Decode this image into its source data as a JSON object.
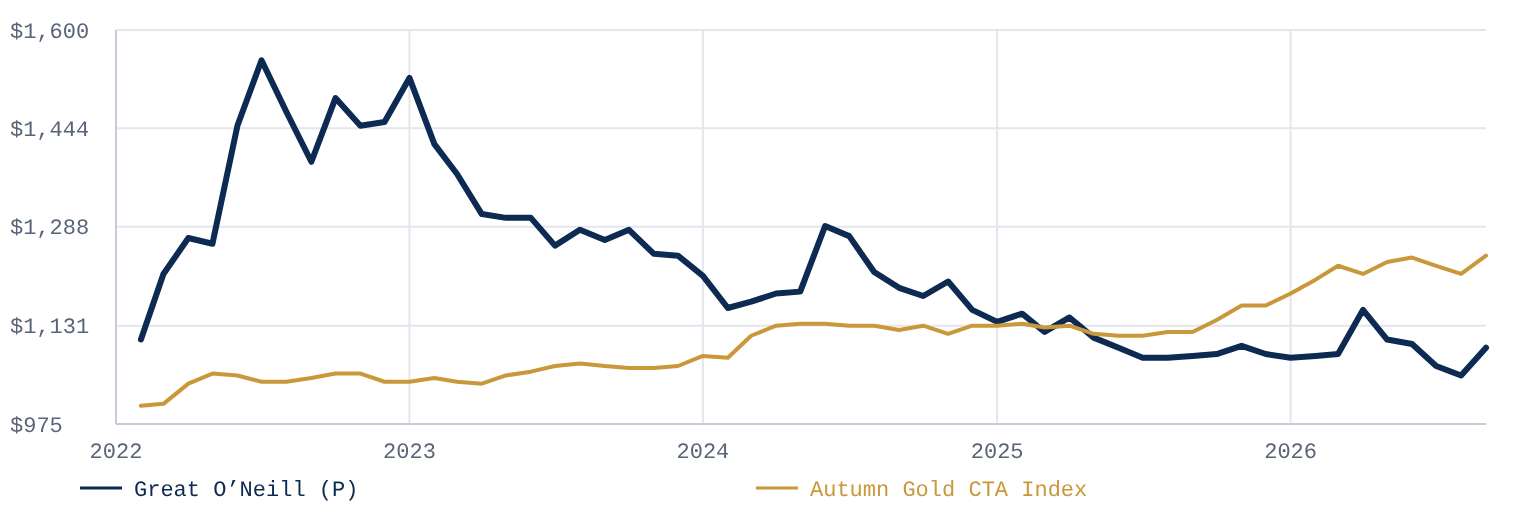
{
  "chart_data": {
    "type": "line",
    "x": [
      "2022-02",
      "2022-03",
      "2022-04",
      "2022-05",
      "2022-06",
      "2022-07",
      "2022-08",
      "2022-09",
      "2022-10",
      "2022-11",
      "2022-12",
      "2023-01",
      "2023-02",
      "2023-03",
      "2023-04",
      "2023-05",
      "2023-06",
      "2023-07",
      "2023-08",
      "2023-09",
      "2023-10",
      "2023-11",
      "2023-12",
      "2024-01",
      "2024-02",
      "2024-03",
      "2024-04",
      "2024-05",
      "2024-06",
      "2024-07",
      "2024-08",
      "2024-09",
      "2024-10",
      "2024-11",
      "2024-12",
      "2025-01",
      "2025-02",
      "2025-03",
      "2025-04",
      "2025-05",
      "2025-06",
      "2025-07",
      "2025-08",
      "2025-09",
      "2025-10",
      "2025-11",
      "2025-12",
      "2026-01",
      "2026-02",
      "2026-03",
      "2026-04",
      "2026-05",
      "2026-06",
      "2026-07",
      "2026-08",
      "2026-09"
    ],
    "series": [
      {
        "name": "Great O’Neill (P)",
        "color": "#0d2a52",
        "values": [
          1109,
          1213,
          1270,
          1261,
          1448,
          1552,
          1470,
          1391,
          1492,
          1448,
          1454,
          1524,
          1419,
          1372,
          1308,
          1302,
          1302,
          1258,
          1283,
          1267,
          1283,
          1245,
          1242,
          1210,
          1159,
          1169,
          1182,
          1185,
          1289,
          1273,
          1216,
          1191,
          1178,
          1201,
          1156,
          1137,
          1150,
          1121,
          1144,
          1112,
          1096,
          1080,
          1080,
          1083,
          1086,
          1099,
          1086,
          1080,
          1083,
          1086,
          1156,
          1109,
          1102,
          1067,
          1052,
          1096
        ]
      },
      {
        "name": "Autumn Gold CTA Index",
        "color": "#c9983a",
        "values": [
          1004,
          1007,
          1039,
          1055,
          1052,
          1042,
          1042,
          1048,
          1055,
          1055,
          1042,
          1042,
          1048,
          1042,
          1039,
          1052,
          1058,
          1067,
          1071,
          1067,
          1064,
          1064,
          1067,
          1083,
          1080,
          1115,
          1131,
          1134,
          1134,
          1131,
          1131,
          1124,
          1131,
          1118,
          1131,
          1131,
          1134,
          1128,
          1131,
          1118,
          1115,
          1115,
          1121,
          1121,
          1140,
          1163,
          1163,
          1182,
          1204,
          1226,
          1213,
          1232,
          1239,
          1226,
          1213,
          1242
        ]
      }
    ],
    "xlim": [
      "2022-01-01",
      "2026-09-01"
    ],
    "xticks": [
      {
        "value": "2022-01-01",
        "label": "2022"
      },
      {
        "value": "2023-01-01",
        "label": "2023"
      },
      {
        "value": "2024-01-01",
        "label": "2024"
      },
      {
        "value": "2025-01-01",
        "label": "2025"
      },
      {
        "value": "2026-01-01",
        "label": "2026"
      }
    ],
    "ylim": [
      975,
      1600
    ],
    "yticks": [
      {
        "value": 975,
        "label": "$975"
      },
      {
        "value": 1131,
        "label": "$1,131"
      },
      {
        "value": 1288,
        "label": "$1,288"
      },
      {
        "value": 1444,
        "label": "$1,444"
      },
      {
        "value": 1600,
        "label": "$1,600"
      }
    ],
    "grid": true,
    "legend": "bottom",
    "marker": "none",
    "line_style": "solid"
  }
}
